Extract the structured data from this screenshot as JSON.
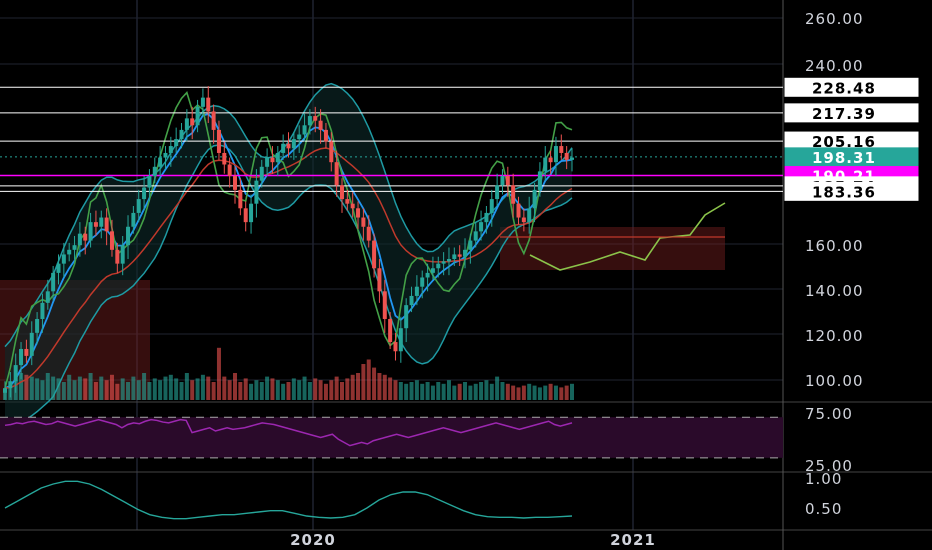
{
  "colors": {
    "background": "#000000",
    "grid": "#1f2330",
    "axis_text": "#d1d4dc",
    "candle_up": "#26a69a",
    "candle_down": "#ef5350",
    "bb_line": "#1e9aa3",
    "bb_fill": "#0d2a2a",
    "ema_fast": "#2196f3",
    "ema_slow": "#c0392b",
    "lagging": "#43a047",
    "cloud_line": "#8bc34a",
    "rsi_line": "#9c27b0",
    "rsi_band": "#2a0a2a",
    "osc_line": "#26a69a"
  },
  "chart_data": {
    "type": "candlestick",
    "price_axis": {
      "ticks": [
        "260.00",
        "240.00",
        "160.00",
        "140.00",
        "120.00",
        "100.00"
      ],
      "range": [
        92,
        262
      ]
    },
    "price_tags": [
      {
        "label": "228.48",
        "value": 228.48,
        "style": "white"
      },
      {
        "label": "217.39",
        "value": 217.39,
        "style": "white"
      },
      {
        "label": "205.16",
        "value": 205.16,
        "style": "white"
      },
      {
        "label": "198.31",
        "value": 198.31,
        "style": "teal"
      },
      {
        "label": "190.21",
        "value": 190.21,
        "style": "magenta"
      },
      {
        "label": "185.74",
        "value": 185.74,
        "style": "white"
      },
      {
        "label": "183.36",
        "value": 183.36,
        "style": "white"
      }
    ],
    "time_axis": {
      "ticks": [
        "2020",
        "2021"
      ]
    },
    "rsi_axis": {
      "ticks": [
        "75.00",
        "25.00"
      ]
    },
    "osc_axis": {
      "ticks": [
        "1.00",
        "0.50"
      ]
    },
    "candles_close": [
      98,
      101,
      108,
      115,
      112,
      122,
      128,
      135,
      140,
      148,
      152,
      156,
      158,
      160,
      165,
      162,
      170,
      168,
      172,
      166,
      158,
      152,
      160,
      168,
      174,
      180,
      185,
      190,
      194,
      198,
      200,
      203,
      206,
      210,
      215,
      212,
      220,
      224,
      218,
      210,
      200,
      195,
      190,
      184,
      176,
      170,
      178,
      188,
      194,
      198,
      196,
      200,
      204,
      202,
      206,
      208,
      212,
      216,
      214,
      210,
      205,
      196,
      186,
      180,
      178,
      176,
      172,
      168,
      162,
      150,
      140,
      128,
      118,
      114,
      124,
      134,
      138,
      142,
      146,
      148,
      150,
      152,
      153,
      154,
      156,
      155,
      158,
      162,
      166,
      170,
      174,
      180,
      186,
      190,
      186,
      178,
      172,
      170,
      176,
      184,
      192,
      198,
      196,
      203,
      200,
      197,
      198
    ],
    "volumes": [
      10,
      15,
      22,
      30,
      28,
      26,
      24,
      22,
      30,
      26,
      24,
      20,
      28,
      22,
      26,
      24,
      30,
      20,
      26,
      22,
      28,
      18,
      24,
      20,
      26,
      22,
      30,
      20,
      24,
      22,
      26,
      28,
      24,
      20,
      30,
      22,
      24,
      28,
      26,
      20,
      58,
      26,
      22,
      30,
      20,
      24,
      18,
      22,
      20,
      26,
      24,
      22,
      18,
      20,
      24,
      22,
      26,
      20,
      24,
      22,
      18,
      22,
      26,
      20,
      24,
      28,
      30,
      40,
      45,
      36,
      30,
      28,
      25,
      22,
      20,
      18,
      20,
      22,
      18,
      20,
      16,
      20,
      18,
      22,
      16,
      18,
      20,
      16,
      18,
      20,
      22,
      18,
      26,
      20,
      18,
      16,
      14,
      16,
      18,
      16,
      14,
      16,
      18,
      16,
      14,
      16,
      18
    ],
    "rsi": [
      65,
      66,
      68,
      67,
      69,
      70,
      68,
      66,
      67,
      70,
      68,
      66,
      64,
      66,
      68,
      70,
      72,
      70,
      68,
      66,
      62,
      66,
      68,
      67,
      70,
      72,
      71,
      69,
      68,
      70,
      72,
      71,
      56,
      58,
      60,
      62,
      58,
      60,
      62,
      60,
      61,
      62,
      64,
      66,
      68,
      67,
      66,
      64,
      62,
      60,
      58,
      56,
      54,
      52,
      50,
      52,
      54,
      48,
      44,
      40,
      42,
      44,
      42,
      46,
      48,
      50,
      52,
      54,
      52,
      50,
      52,
      54,
      56,
      58,
      60,
      62,
      60,
      58,
      56,
      58,
      60,
      62,
      64,
      66,
      68,
      66,
      64,
      62,
      60,
      62,
      64,
      66,
      68,
      70,
      66,
      64,
      66,
      68
    ],
    "osc": [
      0.6,
      0.7,
      0.8,
      0.9,
      0.96,
      1.0,
      1.0,
      0.96,
      0.88,
      0.78,
      0.68,
      0.58,
      0.5,
      0.46,
      0.44,
      0.44,
      0.46,
      0.48,
      0.5,
      0.5,
      0.52,
      0.54,
      0.56,
      0.56,
      0.52,
      0.48,
      0.46,
      0.45,
      0.46,
      0.5,
      0.6,
      0.72,
      0.8,
      0.84,
      0.84,
      0.8,
      0.72,
      0.64,
      0.56,
      0.5,
      0.47,
      0.46,
      0.46,
      0.45,
      0.46,
      0.46,
      0.47,
      0.48
    ]
  }
}
